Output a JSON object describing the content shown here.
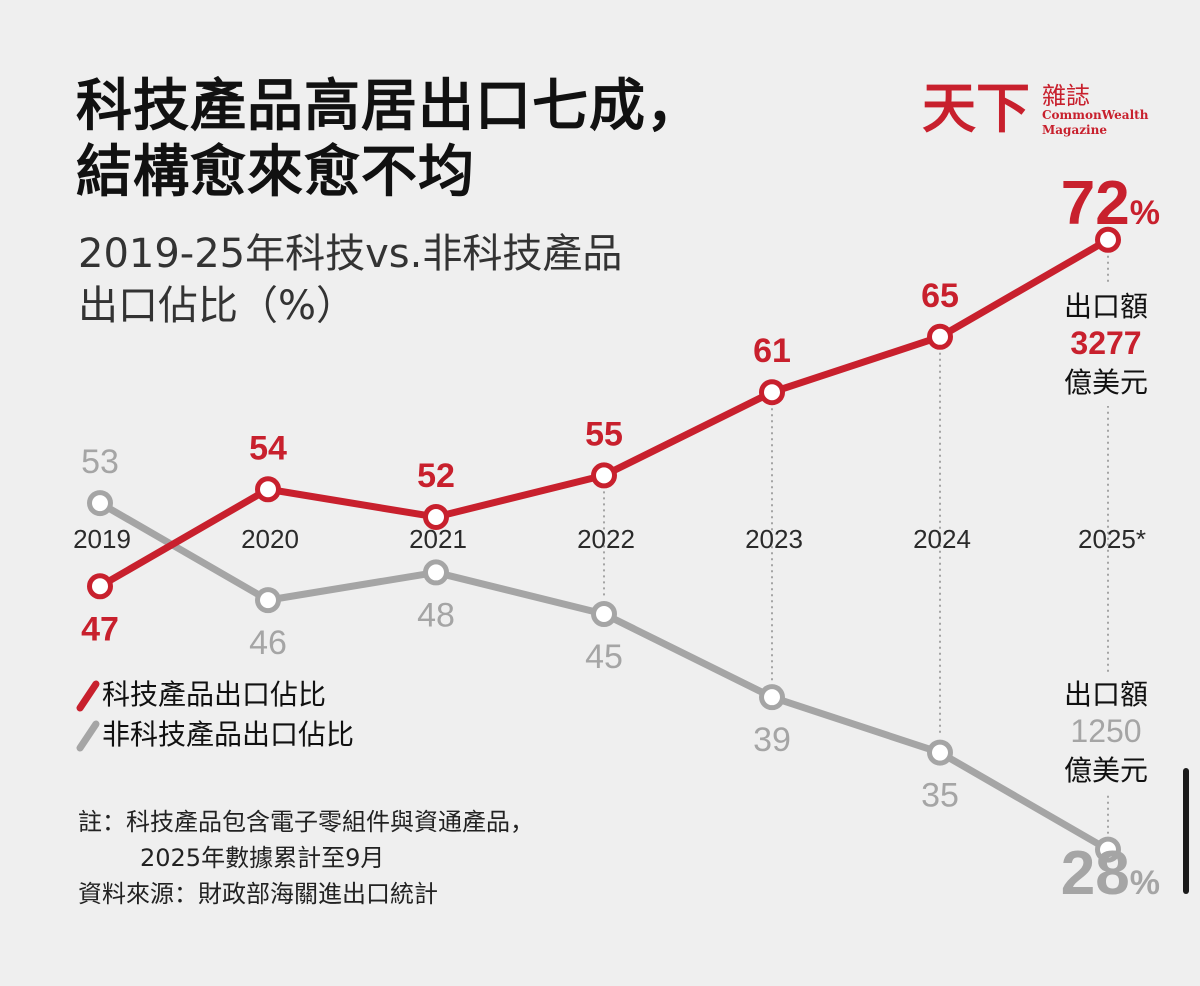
{
  "title_line1": "科技產品高居出口七成，",
  "title_line2": "結構愈來愈不均",
  "subtitle_line1": "2019-25年科技vs.非科技產品",
  "subtitle_line2": "出口佔比（%）",
  "logo": {
    "main": "天下",
    "zh": "雜誌",
    "en": "CommonWealth Magazine"
  },
  "colors": {
    "tech": "#c8202d",
    "non_tech": "#a5a5a5",
    "background": "#efefef"
  },
  "chart_data": {
    "type": "line",
    "categories": [
      "2019",
      "2020",
      "2021",
      "2022",
      "2023",
      "2024",
      "2025*"
    ],
    "series": [
      {
        "name": "科技產品出口佔比",
        "values": [
          47,
          54,
          52,
          55,
          61,
          65,
          72
        ]
      },
      {
        "name": "非科技產品出口佔比",
        "values": [
          53,
          46,
          48,
          45,
          39,
          35,
          28
        ]
      }
    ],
    "final_labels": {
      "tech_value": "72",
      "non_tech_value": "28",
      "unit": "%"
    },
    "annotations": {
      "tech_export": {
        "label": "出口額",
        "amount": "3277",
        "unit": "億美元"
      },
      "non_tech_export": {
        "label": "出口額",
        "amount": "1250",
        "unit": "億美元"
      }
    },
    "grid": false,
    "legend": "bottom-left"
  },
  "notes": {
    "line1": "註：科技產品包含電子零組件與資通產品，",
    "line2": "2025年數據累計至9月",
    "source": "資料來源：財政部海關進出口統計"
  }
}
